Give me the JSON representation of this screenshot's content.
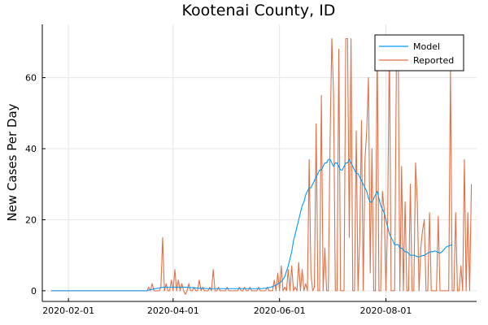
{
  "chart_data": {
    "type": "line",
    "title": "Kootenai County, ID",
    "xlabel": "",
    "ylabel": "New Cases Per Day",
    "x_start": "2020-01-22",
    "x_end": "2020-09-18",
    "xlim": [
      "2020-01-17",
      "2020-09-22"
    ],
    "ylim": [
      -3,
      75
    ],
    "xticks": [
      "2020-02-01",
      "2020-04-01",
      "2020-06-01",
      "2020-08-01"
    ],
    "yticks": [
      0,
      20,
      40,
      60
    ],
    "grid": true,
    "legend_position": "top-right",
    "series": [
      {
        "name": "Model",
        "color": "#009af9",
        "x_start": "2020-01-22",
        "values": [
          0,
          0,
          0,
          0,
          0,
          0,
          0,
          0,
          0,
          0,
          0,
          0,
          0,
          0,
          0,
          0,
          0,
          0,
          0,
          0,
          0,
          0,
          0,
          0,
          0,
          0,
          0,
          0,
          0,
          0,
          0,
          0,
          0,
          0,
          0,
          0,
          0,
          0,
          0,
          0,
          0,
          0,
          0,
          0,
          0,
          0,
          0,
          0,
          0,
          0,
          0,
          0,
          0,
          0,
          0,
          0,
          0.2,
          0.3,
          0.4,
          0.5,
          0.6,
          0.7,
          0.8,
          0.9,
          1,
          1,
          1,
          1,
          1,
          1,
          1,
          1,
          1,
          1,
          1,
          1,
          1,
          1,
          1,
          0.9,
          0.9,
          0.9,
          0.8,
          0.8,
          0.8,
          0.7,
          0.7,
          0.7,
          0.7,
          0.6,
          0.6,
          0.6,
          0.6,
          0.6,
          0.6,
          0.6,
          0.6,
          0.6,
          0.6,
          0.6,
          0.6,
          0.6,
          0.6,
          0.6,
          0.6,
          0.6,
          0.6,
          0.6,
          0.6,
          0.6,
          0.6,
          0.6,
          0.6,
          0.6,
          0.6,
          0.6,
          0.6,
          0.6,
          0.6,
          0.6,
          0.6,
          0.6,
          0.7,
          0.7,
          0.8,
          0.9,
          1,
          1.2,
          1.4,
          1.6,
          1.9,
          2.2,
          2.6,
          3.2,
          4,
          5.5,
          7,
          9,
          11,
          14,
          16,
          18,
          20,
          22,
          24,
          25,
          27,
          28,
          29,
          29,
          30,
          31,
          32,
          33,
          34,
          34,
          35,
          36,
          36,
          37,
          37,
          36,
          35,
          36,
          36,
          35,
          34,
          34,
          35,
          36,
          36,
          37,
          36,
          35,
          34,
          33,
          33,
          32,
          31,
          30,
          29,
          28,
          26,
          25,
          25,
          26,
          27,
          28,
          26,
          24,
          23,
          22,
          20,
          18,
          16,
          15,
          14,
          13,
          13,
          13,
          12,
          12,
          11.5,
          11,
          11,
          10.5,
          10,
          10,
          10,
          9.8,
          9.6,
          9.6,
          9.7,
          9.9,
          10,
          10.3,
          10.6,
          10.8,
          11,
          11,
          11.2,
          11,
          10.8,
          10.6,
          10.9,
          11.5,
          12,
          12.5,
          12.6,
          12.8,
          13
        ]
      },
      {
        "name": "Reported",
        "color": "#e26f46",
        "x_start": "2020-01-22",
        "values": [
          0,
          0,
          0,
          0,
          0,
          0,
          0,
          0,
          0,
          0,
          0,
          0,
          0,
          0,
          0,
          0,
          0,
          0,
          0,
          0,
          0,
          0,
          0,
          0,
          0,
          0,
          0,
          0,
          0,
          0,
          0,
          0,
          0,
          0,
          0,
          0,
          0,
          0,
          0,
          0,
          0,
          0,
          0,
          0,
          0,
          0,
          0,
          0,
          0,
          0,
          0,
          0,
          0,
          0,
          0,
          0,
          1,
          0,
          2,
          0,
          0,
          0,
          0,
          1,
          15,
          0,
          2,
          0,
          0,
          3,
          0,
          6,
          0,
          3,
          0,
          2,
          0,
          -1,
          0,
          2,
          0,
          0,
          1,
          0,
          0,
          3,
          0,
          1,
          0,
          0,
          0,
          1,
          0,
          6,
          0,
          0,
          1,
          0,
          0,
          0,
          0,
          1,
          0,
          0,
          0,
          0,
          0,
          0,
          1,
          0,
          0,
          1,
          0,
          0,
          1,
          0,
          0,
          0,
          0,
          1,
          0,
          0,
          0,
          0,
          1,
          0,
          0,
          0,
          3,
          0,
          5,
          0,
          7,
          0,
          1,
          0,
          6,
          0,
          7,
          0,
          1,
          0,
          8,
          0,
          6,
          0,
          2,
          0,
          37,
          5,
          0,
          1,
          47,
          0,
          0,
          55,
          0,
          12,
          0,
          0,
          43,
          71,
          55,
          0,
          0,
          68,
          0,
          0,
          0,
          71,
          71,
          15,
          71,
          0,
          0,
          45,
          0,
          15,
          48,
          0,
          37,
          45,
          60,
          5,
          40,
          0,
          0,
          71,
          0,
          0,
          28,
          23,
          0,
          20,
          71,
          0,
          0,
          0,
          63,
          71,
          0,
          35,
          0,
          25,
          0,
          0,
          30,
          0,
          0,
          36,
          25,
          0,
          12,
          17,
          20,
          0,
          0,
          22,
          0,
          0,
          0,
          0,
          21,
          0,
          0,
          0,
          0,
          0,
          0,
          63,
          0,
          0,
          22,
          0,
          0,
          7,
          0,
          37,
          0,
          22,
          0,
          30
        ]
      }
    ]
  }
}
